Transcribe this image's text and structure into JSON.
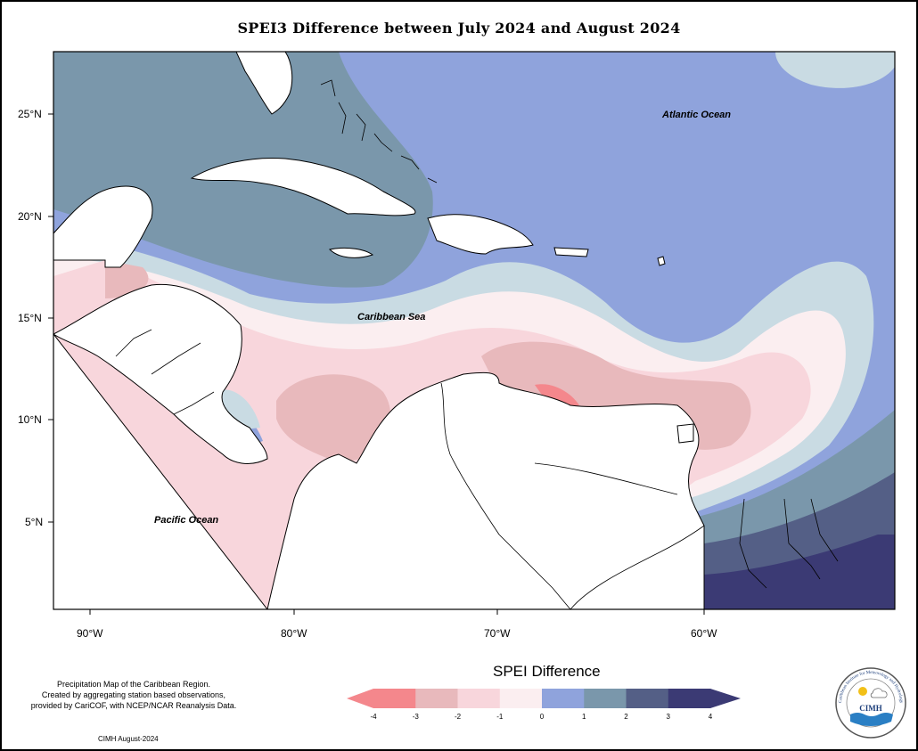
{
  "title": "SPEI3 Difference between July 2024 and August 2024",
  "lat_labels": [
    "25°N",
    "20°N",
    "15°N",
    "10°N",
    "5°N"
  ],
  "lon_labels": [
    "90°W",
    "80°W",
    "70°W",
    "60°W"
  ],
  "ocean_labels": {
    "atlantic": "Atlantic Ocean",
    "caribbean": "Caribbean Sea",
    "pacific": "Pacific Ocean"
  },
  "legend": {
    "title": "SPEI Difference",
    "ticks": [
      "-4",
      "-3",
      "-2",
      "-1",
      "0",
      "1",
      "2",
      "3",
      "4"
    ],
    "colors": [
      "#f4878c",
      "#e8b9bc",
      "#f8d6dc",
      "#fbeef0",
      "#c9dbe3",
      "#8fa3dc",
      "#7a97ab",
      "#545f86",
      "#3b3a74"
    ]
  },
  "credit": {
    "line1": "Precipitation Map of the Caribbean Region.",
    "line2": "Created by aggregating station based observations,",
    "line3": "provided by CariCOF, with NCEP/NCAR Reanalysis Data."
  },
  "date_credit": "CIMH August-2024",
  "logo": {
    "name": "CIMH",
    "ring_text": "Caribbean Institute for Meteorology and Hydrology"
  },
  "map_colors": {
    "ocean_neutral": "#ffffff",
    "land_fill": "#ffffff",
    "coastline": "#000000"
  }
}
